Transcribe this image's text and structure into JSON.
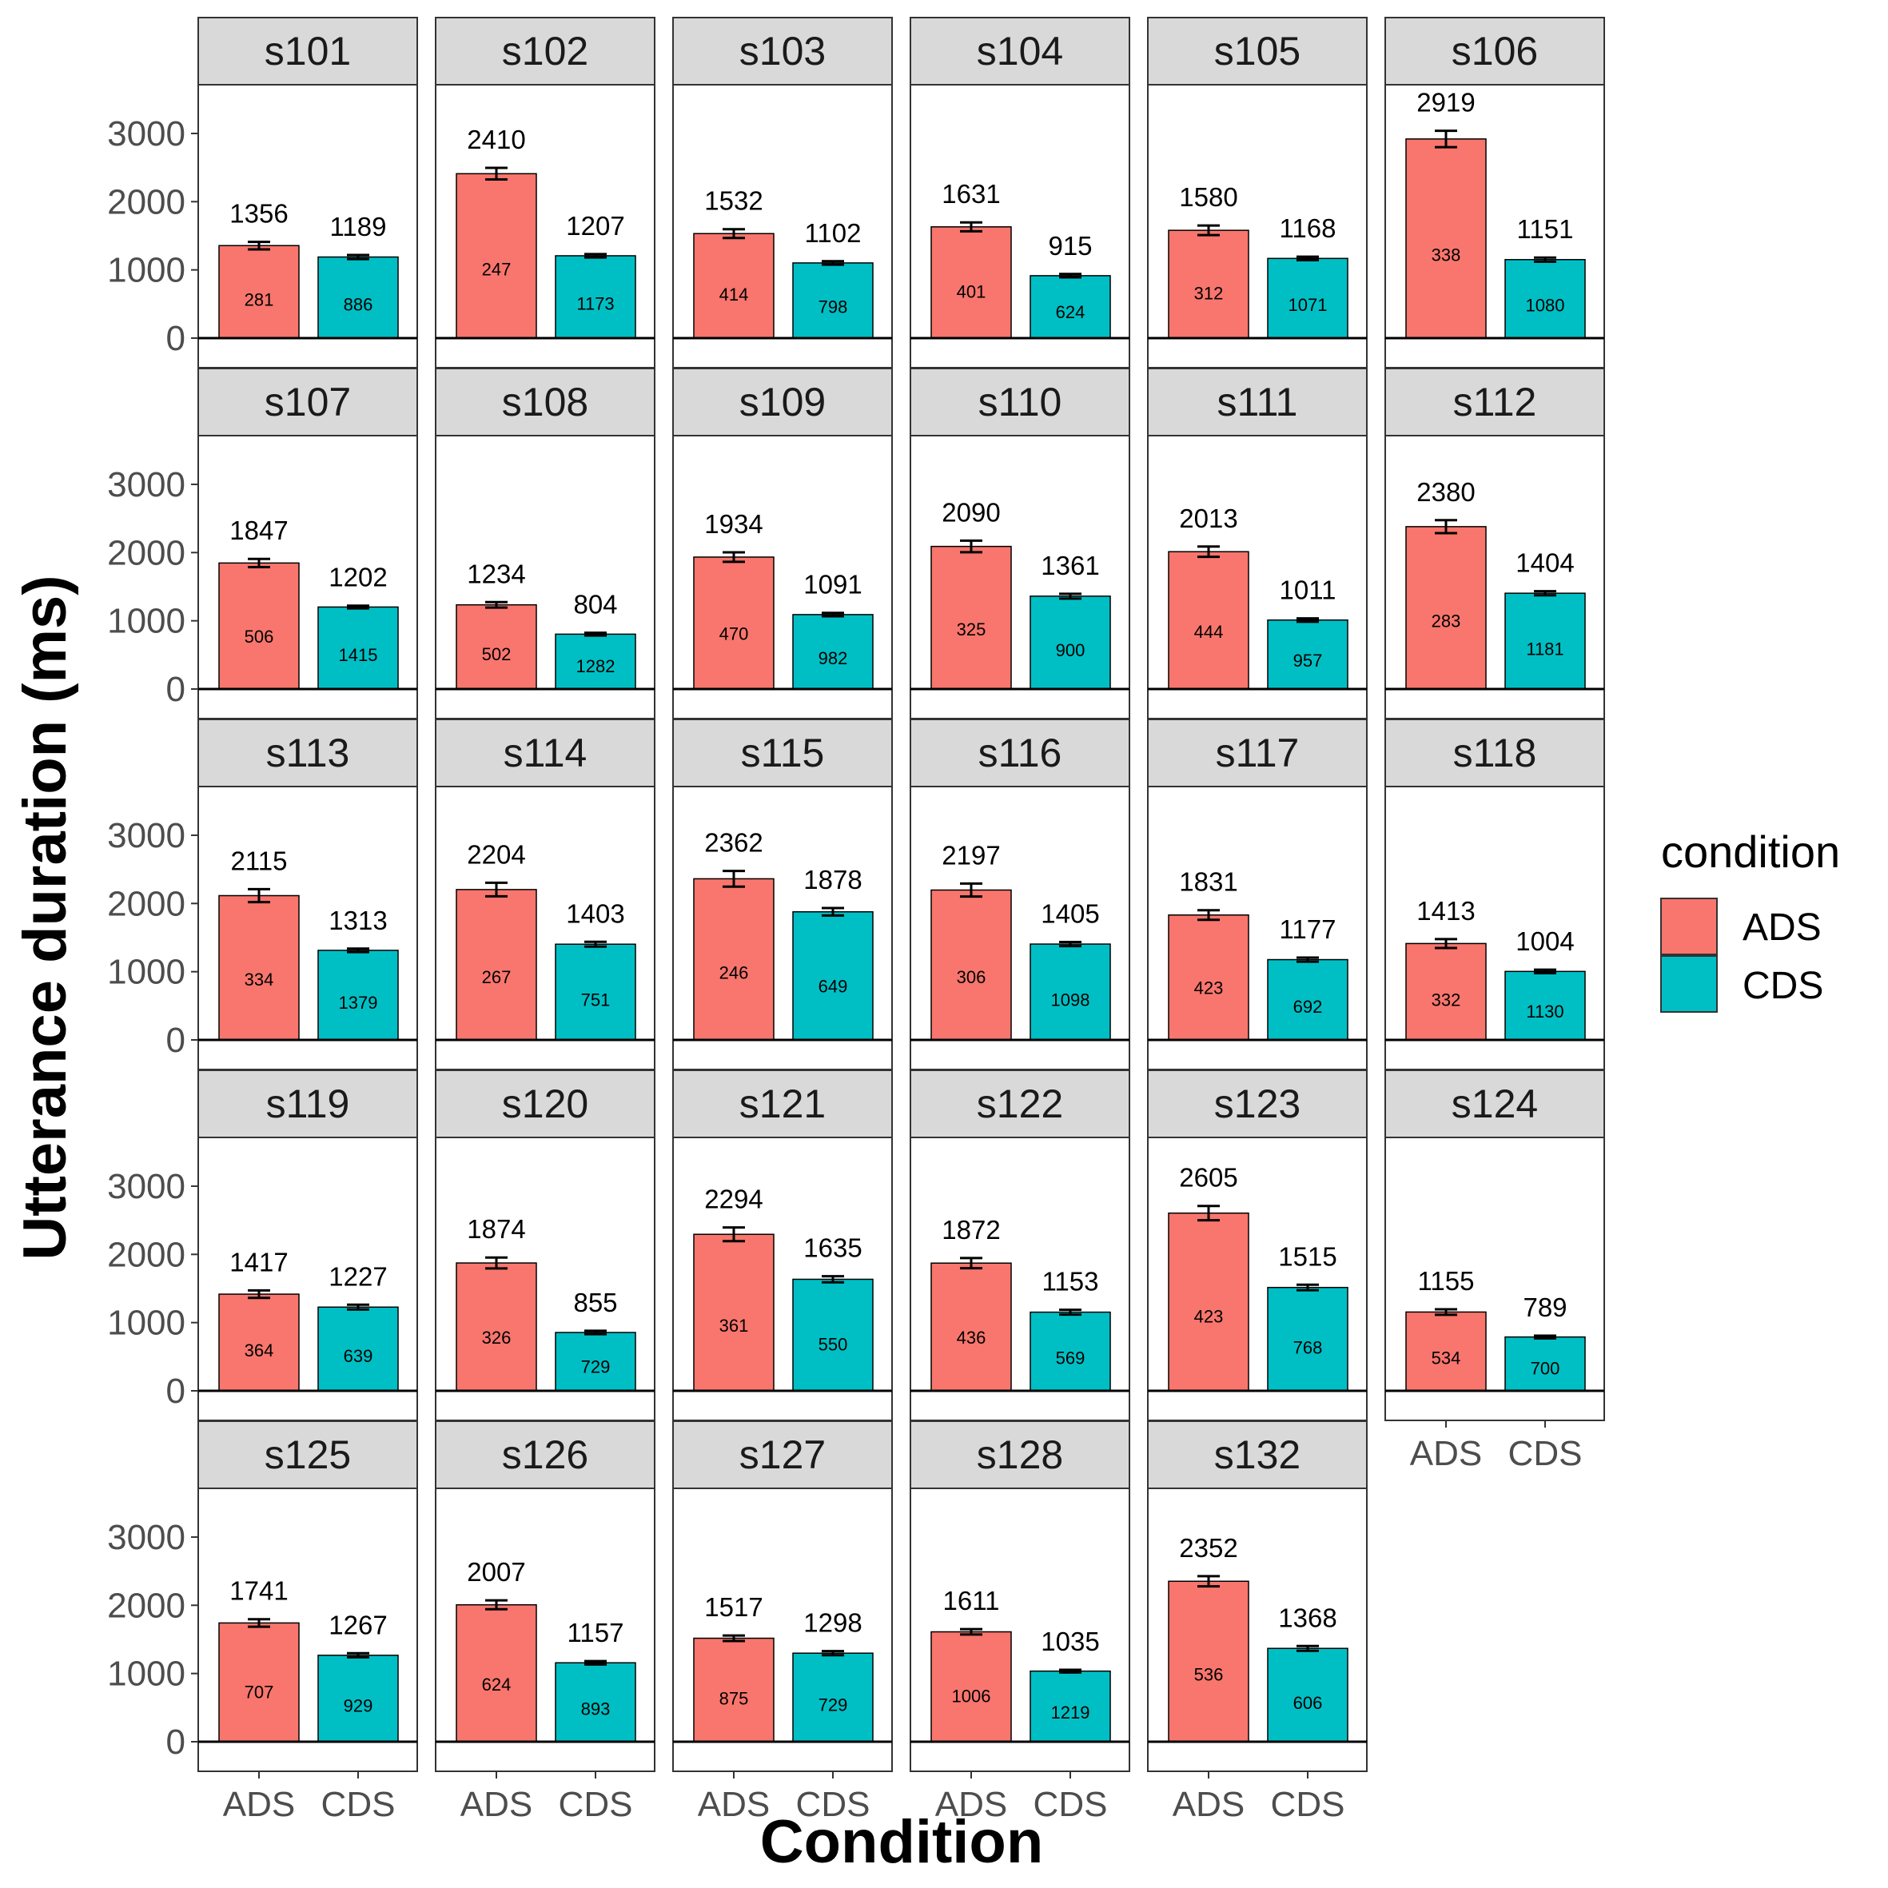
{
  "chart_data": {
    "type": "bar",
    "xlabel": "Condition",
    "ylabel": "Utterance duration (ms)",
    "ylim": [
      0,
      3750
    ],
    "yticks": [
      0,
      1000,
      2000,
      3000
    ],
    "categories": [
      "ADS",
      "CDS"
    ],
    "colors": {
      "ADS": "#F8766D",
      "CDS": "#00BFC4"
    },
    "legend": {
      "title": "condition",
      "position": "right",
      "items": [
        "ADS",
        "CDS"
      ]
    },
    "grid": false,
    "facet_layout": {
      "ncol": 6,
      "nrow": 5
    },
    "panels": [
      {
        "subject": "s101",
        "means": [
          1356,
          1189
        ],
        "counts": [
          281,
          886
        ],
        "err": [
          55,
          30
        ]
      },
      {
        "subject": "s102",
        "means": [
          2410,
          1207
        ],
        "counts": [
          247,
          1173
        ],
        "err": [
          85,
          25
        ]
      },
      {
        "subject": "s103",
        "means": [
          1532,
          1102
        ],
        "counts": [
          414,
          798
        ],
        "err": [
          65,
          25
        ]
      },
      {
        "subject": "s104",
        "means": [
          1631,
          915
        ],
        "counts": [
          401,
          624
        ],
        "err": [
          65,
          25
        ]
      },
      {
        "subject": "s105",
        "means": [
          1580,
          1168
        ],
        "counts": [
          312,
          1071
        ],
        "err": [
          70,
          25
        ]
      },
      {
        "subject": "s106",
        "means": [
          2919,
          1151
        ],
        "counts": [
          338,
          1080
        ],
        "err": [
          120,
          30
        ]
      },
      {
        "subject": "s107",
        "means": [
          1847,
          1202
        ],
        "counts": [
          506,
          1415
        ],
        "err": [
          60,
          20
        ]
      },
      {
        "subject": "s108",
        "means": [
          1234,
          804
        ],
        "counts": [
          502,
          1282
        ],
        "err": [
          40,
          20
        ]
      },
      {
        "subject": "s109",
        "means": [
          1934,
          1091
        ],
        "counts": [
          470,
          982
        ],
        "err": [
          70,
          25
        ]
      },
      {
        "subject": "s110",
        "means": [
          2090,
          1361
        ],
        "counts": [
          325,
          900
        ],
        "err": [
          85,
          35
        ]
      },
      {
        "subject": "s111",
        "means": [
          2013,
          1011
        ],
        "counts": [
          444,
          957
        ],
        "err": [
          75,
          25
        ]
      },
      {
        "subject": "s112",
        "means": [
          2380,
          1404
        ],
        "counts": [
          283,
          1181
        ],
        "err": [
          95,
          30
        ]
      },
      {
        "subject": "s113",
        "means": [
          2115,
          1313
        ],
        "counts": [
          334,
          1379
        ],
        "err": [
          95,
          25
        ]
      },
      {
        "subject": "s114",
        "means": [
          2204,
          1403
        ],
        "counts": [
          267,
          751
        ],
        "err": [
          100,
          35
        ]
      },
      {
        "subject": "s115",
        "means": [
          2362,
          1878
        ],
        "counts": [
          246,
          649
        ],
        "err": [
          115,
          55
        ]
      },
      {
        "subject": "s116",
        "means": [
          2197,
          1405
        ],
        "counts": [
          306,
          1098
        ],
        "err": [
          95,
          30
        ]
      },
      {
        "subject": "s117",
        "means": [
          1831,
          1177
        ],
        "counts": [
          423,
          692
        ],
        "err": [
          70,
          30
        ]
      },
      {
        "subject": "s118",
        "means": [
          1413,
          1004
        ],
        "counts": [
          332,
          1130
        ],
        "err": [
          65,
          25
        ]
      },
      {
        "subject": "s119",
        "means": [
          1417,
          1227
        ],
        "counts": [
          364,
          639
        ],
        "err": [
          55,
          35
        ]
      },
      {
        "subject": "s120",
        "means": [
          1874,
          855
        ],
        "counts": [
          326,
          729
        ],
        "err": [
          80,
          25
        ]
      },
      {
        "subject": "s121",
        "means": [
          2294,
          1635
        ],
        "counts": [
          361,
          550
        ],
        "err": [
          100,
          45
        ]
      },
      {
        "subject": "s122",
        "means": [
          1872,
          1153
        ],
        "counts": [
          436,
          569
        ],
        "err": [
          75,
          35
        ]
      },
      {
        "subject": "s123",
        "means": [
          2605,
          1515
        ],
        "counts": [
          423,
          768
        ],
        "err": [
          105,
          40
        ]
      },
      {
        "subject": "s124",
        "means": [
          1155,
          789
        ],
        "counts": [
          534,
          700
        ],
        "err": [
          40,
          20
        ]
      },
      {
        "subject": "s125",
        "means": [
          1741,
          1267
        ],
        "counts": [
          707,
          929
        ],
        "err": [
          55,
          30
        ]
      },
      {
        "subject": "s126",
        "means": [
          2007,
          1157
        ],
        "counts": [
          624,
          893
        ],
        "err": [
          65,
          25
        ]
      },
      {
        "subject": "s127",
        "means": [
          1517,
          1298
        ],
        "counts": [
          875,
          729
        ],
        "err": [
          40,
          30
        ]
      },
      {
        "subject": "s128",
        "means": [
          1611,
          1035
        ],
        "counts": [
          1006,
          1219
        ],
        "err": [
          40,
          20
        ]
      },
      {
        "subject": "s132",
        "means": [
          2352,
          1368
        ],
        "counts": [
          536,
          606
        ],
        "err": [
          75,
          35
        ]
      }
    ]
  }
}
